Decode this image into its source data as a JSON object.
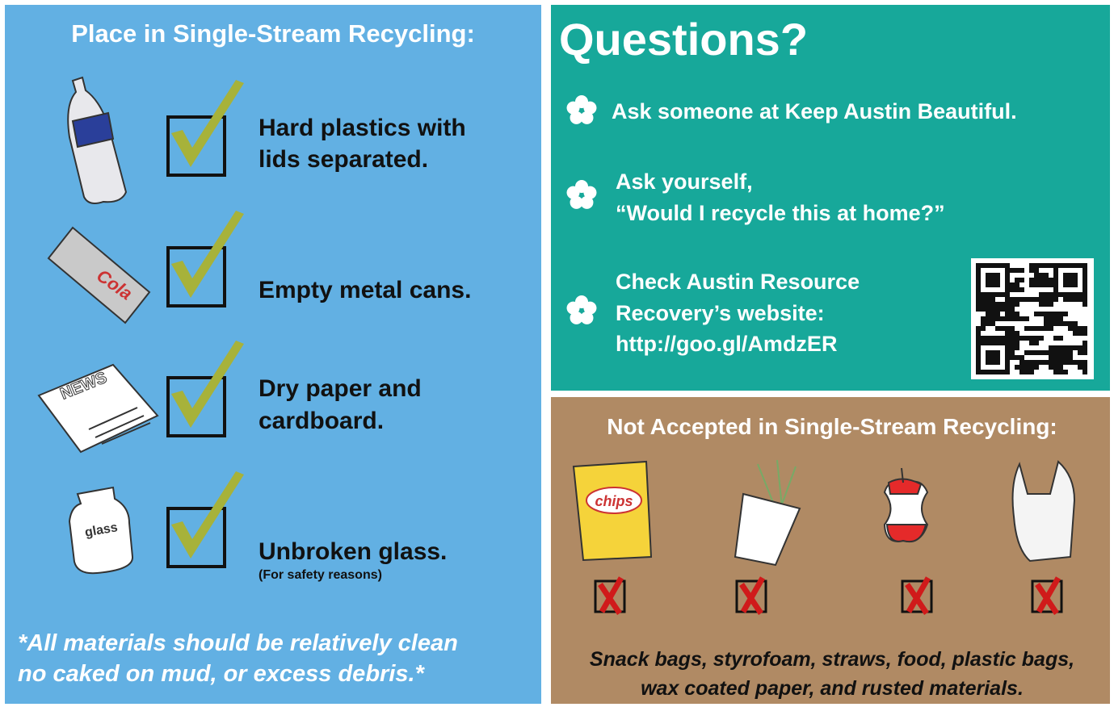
{
  "accepted": {
    "title": "Place in Single-Stream Recycling:",
    "items": [
      {
        "lines": [
          "Hard plastics with",
          "lids separated."
        ],
        "icon_label": null
      },
      {
        "lines": [
          "Empty metal cans."
        ],
        "icon_label": "Cola"
      },
      {
        "lines": [
          "Dry paper and",
          "cardboard."
        ],
        "icon_label": "NEWS"
      },
      {
        "lines": [
          "Unbroken glass."
        ],
        "note": "(For safety reasons)",
        "icon_label": "glass"
      }
    ],
    "footnote": [
      "*All materials should be relatively clean",
      "no caked on mud, or excess debris.*"
    ]
  },
  "questions": {
    "title": "Questions?",
    "items": [
      {
        "lines": [
          "Ask someone at Keep Austin Beautiful."
        ]
      },
      {
        "lines": [
          "Ask yourself,",
          "“Would I recycle this at home?”"
        ]
      },
      {
        "lines": [
          "Check Austin Resource",
          "Recovery’s website:",
          "http://goo.gl/AmdzER"
        ]
      }
    ]
  },
  "not_accepted": {
    "title": "Not Accepted in Single-Stream Recycling:",
    "icon_label": "chips",
    "footnote": [
      "Snack bags, styrofoam, straws, food, plastic bags,",
      "wax coated paper, and rusted materials."
    ]
  }
}
